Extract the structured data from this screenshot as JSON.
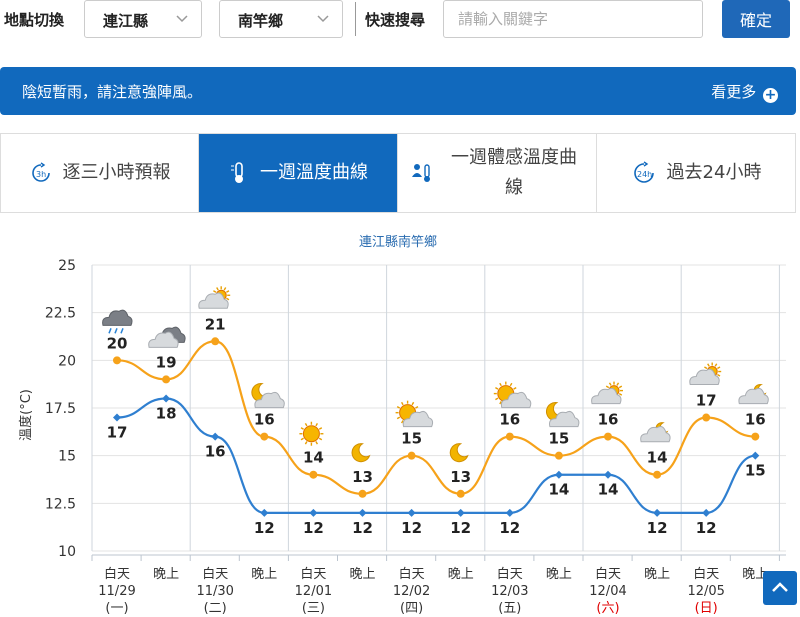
{
  "topbar": {
    "location_label": "地點切換",
    "county_value": "連江縣",
    "town_value": "南竿鄉",
    "search_label": "快速搜尋",
    "search_placeholder": "請輸入關鍵字",
    "confirm_label": "確定"
  },
  "alert": {
    "message": "陰短暫雨，請注意強陣風。",
    "more_label": "看更多"
  },
  "tabs": [
    {
      "label": "逐三小時預報",
      "icon": "3h-clock-icon"
    },
    {
      "label": "一週溫度曲線",
      "icon": "thermometer-icon"
    },
    {
      "label": "一週體感溫度曲線",
      "icon": "person-thermometer-icon"
    },
    {
      "label": "過去24小時",
      "icon": "24h-clock-icon"
    }
  ],
  "colors": {
    "accent": "#1169bd",
    "high_line": "#f6a21a",
    "low_line": "#2f7fd0",
    "weekend": "#e00000"
  },
  "chart_data": {
    "type": "line",
    "title": "連江縣南竿鄉",
    "ylabel": "溫度(°C)",
    "ylim": [
      10,
      25
    ],
    "yticks": [
      "10",
      "12.5",
      "15",
      "17.5",
      "20",
      "22.5",
      "25"
    ],
    "grid": true,
    "categories": [
      "白天",
      "晚上",
      "白天",
      "晚上",
      "白天",
      "晚上",
      "白天",
      "晚上",
      "白天",
      "晚上",
      "白天",
      "晚上",
      "白天",
      "晚上"
    ],
    "days": [
      {
        "date": "11/29",
        "weekday": "(一)",
        "weekend": false
      },
      {
        "date": "11/30",
        "weekday": "(二)",
        "weekend": false
      },
      {
        "date": "12/01",
        "weekday": "(三)",
        "weekend": false
      },
      {
        "date": "12/02",
        "weekday": "(四)",
        "weekend": false
      },
      {
        "date": "12/03",
        "weekday": "(五)",
        "weekend": false
      },
      {
        "date": "12/04",
        "weekday": "(六)",
        "weekend": true
      },
      {
        "date": "12/05",
        "weekday": "(日)",
        "weekend": true
      }
    ],
    "series": [
      {
        "values": [
          20,
          19,
          21,
          16,
          14,
          13,
          15,
          13,
          16,
          15,
          16,
          14,
          17,
          16
        ]
      },
      {
        "values": [
          17,
          18,
          16,
          12,
          12,
          12,
          12,
          12,
          12,
          14,
          14,
          12,
          12,
          15
        ]
      }
    ],
    "weather_icons": [
      "cloud-rain-icon",
      "cloudy-icon",
      "cloudy-sun-icon",
      "moon-cloud-icon",
      "sun-icon",
      "moon-icon",
      "sun-cloud-icon",
      "moon-icon",
      "sun-cloud-icon",
      "moon-cloud-icon",
      "cloudy-sun-icon",
      "cloudy-moon-icon",
      "cloudy-sun-icon",
      "cloudy-moon-icon"
    ]
  }
}
